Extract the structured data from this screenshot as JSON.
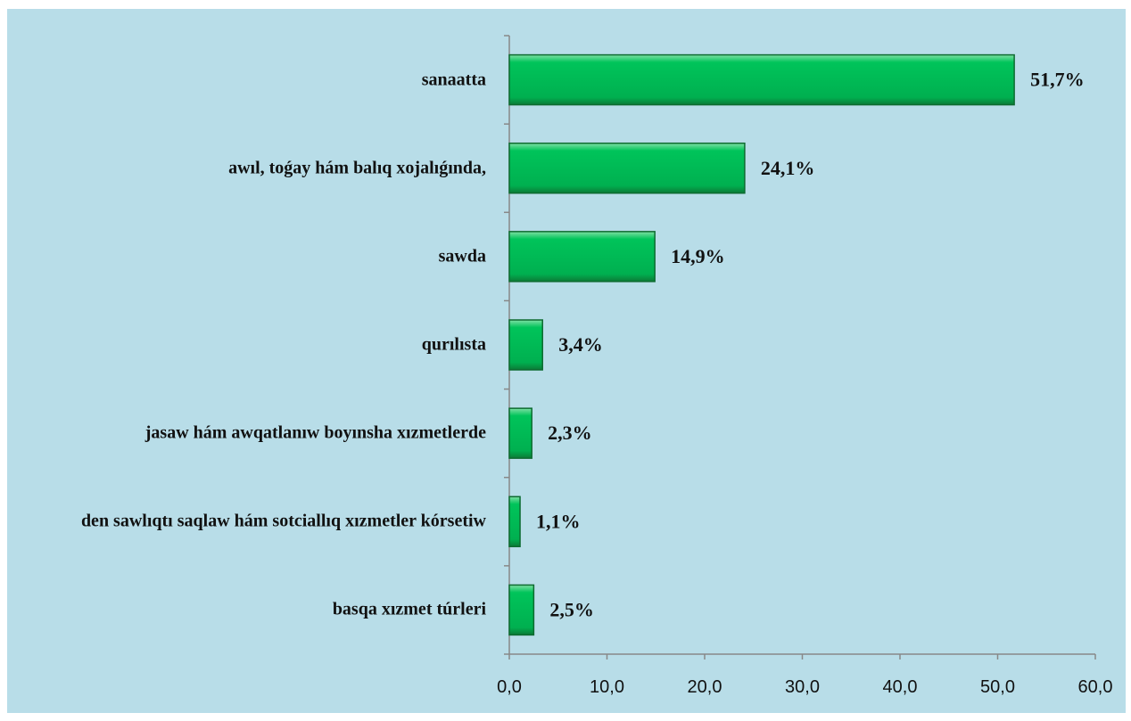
{
  "chart_data": {
    "type": "bar",
    "orientation": "horizontal",
    "categories": [
      "sanaatta",
      "awıl, toǵay hám balıq xojalıǵında,",
      "sawda",
      "qurılısta",
      "jasaw hám awqatlanıw boyınsha xızmetlerde",
      "den sawlıqtı saqlaw hám sotciallıq xızmetler kórsetiw",
      "basqa xızmet túrleri"
    ],
    "values": [
      51.7,
      24.1,
      14.9,
      3.4,
      2.3,
      1.1,
      2.5
    ],
    "value_labels": [
      "51,7%",
      "24,1%",
      "14,9%",
      "3,4%",
      "2,3%",
      "1,1%",
      "2,5%"
    ],
    "color": "#00b050",
    "xlim": [
      0,
      60
    ],
    "xticks": [
      {
        "value": 0,
        "label": "0,0"
      },
      {
        "value": 10,
        "label": "10,0"
      },
      {
        "value": 20,
        "label": "20,0"
      },
      {
        "value": 30,
        "label": "30,0"
      },
      {
        "value": 40,
        "label": "40,0"
      },
      {
        "value": 50,
        "label": "50,0"
      },
      {
        "value": 60,
        "label": "60,0"
      }
    ],
    "grid": false
  }
}
